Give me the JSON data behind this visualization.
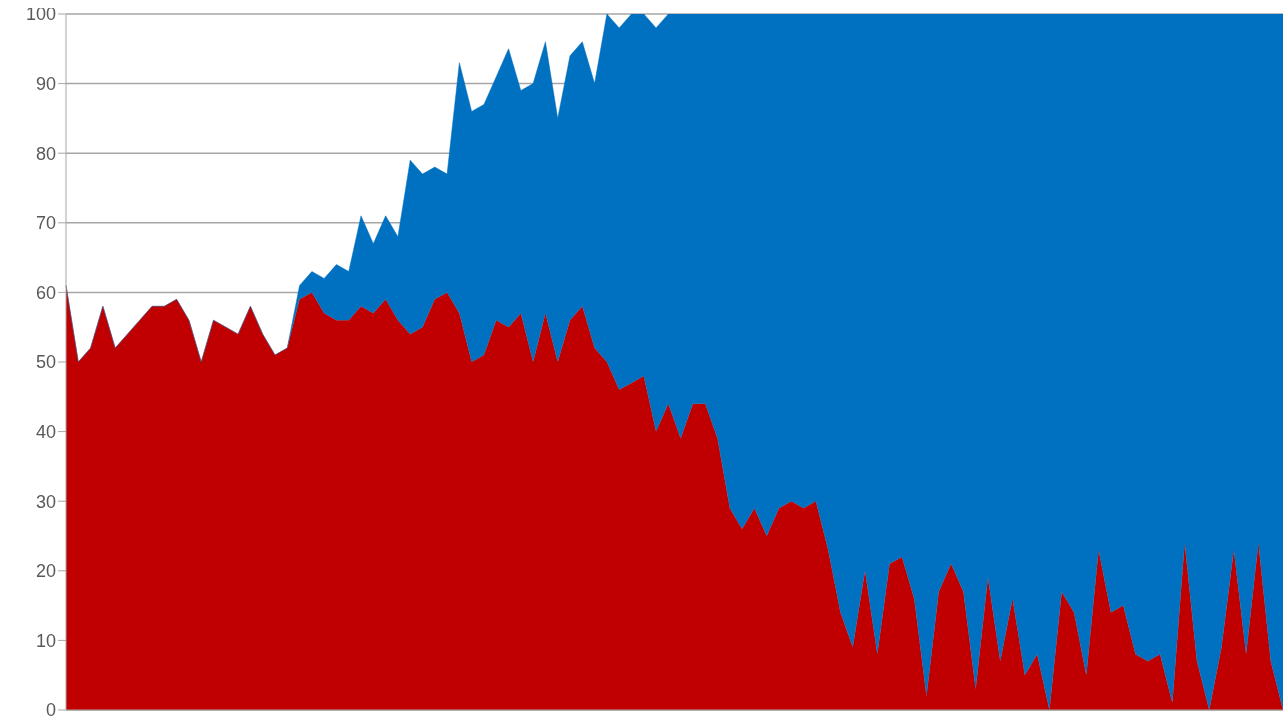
{
  "chart_data": {
    "type": "area",
    "categories": [
      null,
      null,
      null,
      null,
      null,
      null,
      null,
      null,
      null,
      null,
      null,
      null,
      null,
      null,
      null,
      null,
      null,
      null,
      null,
      null,
      null,
      null,
      null,
      null,
      null,
      null,
      null,
      null,
      null,
      null,
      null,
      null,
      null,
      null,
      null,
      null,
      null,
      null,
      null,
      null,
      null,
      null,
      null,
      null,
      null,
      null,
      null,
      null,
      null,
      null,
      null,
      null,
      null,
      null,
      null,
      null,
      null,
      null,
      null,
      null,
      null,
      null,
      null,
      null,
      null,
      null,
      null,
      null,
      null,
      null,
      null,
      null,
      null,
      null,
      null,
      null,
      null,
      null,
      null,
      null,
      null,
      null,
      null,
      null,
      null,
      null,
      null,
      null,
      null,
      null,
      null,
      null,
      null,
      null,
      null,
      null,
      null,
      null,
      null,
      null
    ],
    "series": [
      {
        "color": "#c00000",
        "values": [
          61,
          50,
          52,
          58,
          52,
          54,
          56,
          58,
          58,
          59,
          56,
          50,
          56,
          55,
          54,
          58,
          54,
          51,
          52,
          59,
          60,
          57,
          56,
          56,
          58,
          57,
          59,
          56,
          54,
          55,
          59,
          60,
          57,
          50,
          51,
          56,
          55,
          57,
          50,
          57,
          50,
          56,
          58,
          52,
          50,
          46,
          47,
          48,
          40,
          44,
          39,
          44,
          44,
          39,
          29,
          26,
          29,
          25,
          29,
          30,
          29,
          30,
          23,
          14,
          9,
          20,
          8,
          21,
          22,
          16,
          2,
          17,
          21,
          17,
          3,
          19,
          7,
          16,
          5,
          8,
          0,
          17,
          14,
          5,
          23,
          14,
          15,
          8,
          7,
          8,
          1,
          24,
          7,
          0,
          9,
          23,
          8,
          24,
          7,
          0
        ]
      },
      {
        "color": "#0070c0",
        "values": [
          0,
          0,
          0,
          0,
          0,
          0,
          0,
          0,
          0,
          0,
          0,
          0,
          0,
          0,
          0,
          0,
          0,
          0,
          0,
          2,
          3,
          5,
          8,
          7,
          13,
          10,
          12,
          12,
          25,
          22,
          19,
          17,
          36,
          36,
          36,
          35,
          40,
          32,
          40,
          39,
          35,
          38,
          38,
          38,
          50,
          52,
          53,
          52,
          58,
          56,
          61,
          56,
          56,
          61,
          71,
          74,
          71,
          75,
          71,
          70,
          71,
          70,
          77,
          86,
          91,
          80,
          92,
          79,
          78,
          84,
          98,
          83,
          79,
          83,
          97,
          81,
          93,
          84,
          95,
          92,
          100,
          83,
          86,
          95,
          77,
          86,
          85,
          92,
          93,
          92,
          99,
          76,
          93,
          100,
          91,
          77,
          92,
          76,
          93,
          100
        ]
      }
    ],
    "stacked": true,
    "ylim": [
      0,
      100
    ],
    "yticks": [
      0,
      10,
      20,
      30,
      40,
      50,
      60,
      70,
      80,
      90,
      100
    ],
    "grid": "y"
  }
}
